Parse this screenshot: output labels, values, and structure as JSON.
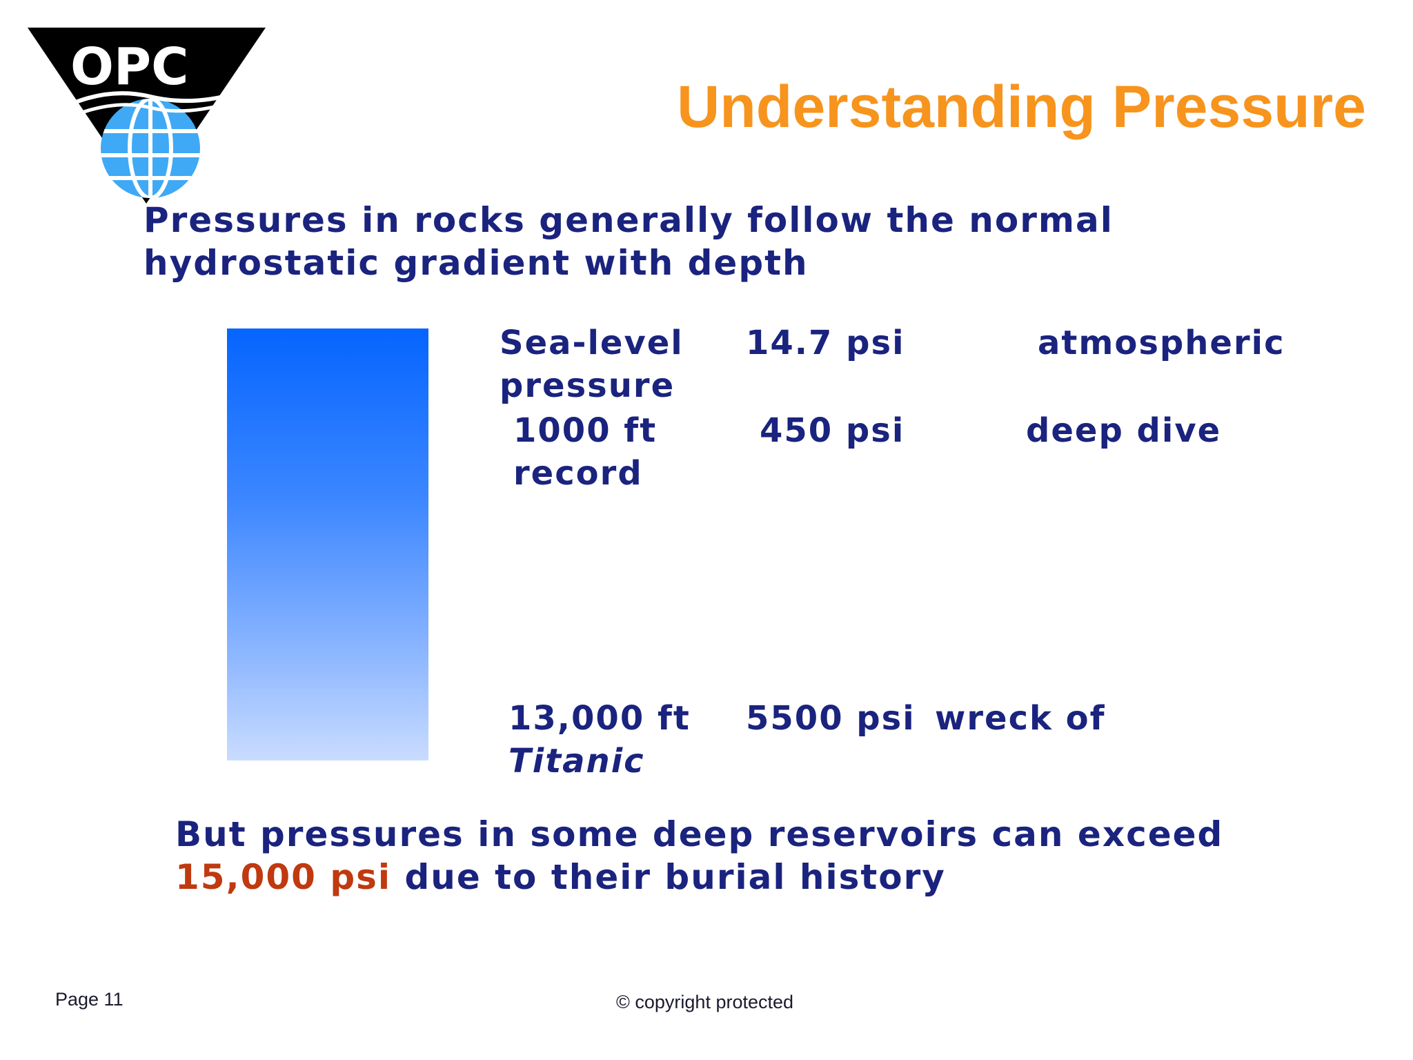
{
  "logo": {
    "text": "OPC",
    "icon": "opc-globe-triangle-logo",
    "colors": {
      "triangle": "#000000",
      "globe": "#3fa9f5",
      "text": "#ffffff"
    }
  },
  "title": "Understanding Pressure",
  "intro": {
    "line1": "Pressures in rocks generally follow the normal",
    "line2": "hydrostatic gradient with depth"
  },
  "rows": [
    {
      "depth": [
        "Sea-level",
        "pressure"
      ],
      "pressure": "14.7 psi",
      "note": "atmospheric"
    },
    {
      "depth": [
        "1000 ft",
        "record"
      ],
      "pressure": "450 psi",
      "note": "deep dive"
    },
    {
      "depth": [
        "13,000 ft",
        "Titanic"
      ],
      "pressure": "5500 psi",
      "note": "wreck of"
    }
  ],
  "closing": {
    "line1": "But pressures in some deep reservoirs can exceed",
    "highlight": "15,000 psi",
    "line2_rest": " due to their burial history"
  },
  "footer": {
    "page": "Page 11",
    "copyright": "© copyright protected"
  },
  "colors": {
    "title": "#f7941d",
    "body_text": "#1a237e",
    "highlight": "#c0390f",
    "bar_top": "#0565ff",
    "bar_bottom": "#c9dcff"
  }
}
